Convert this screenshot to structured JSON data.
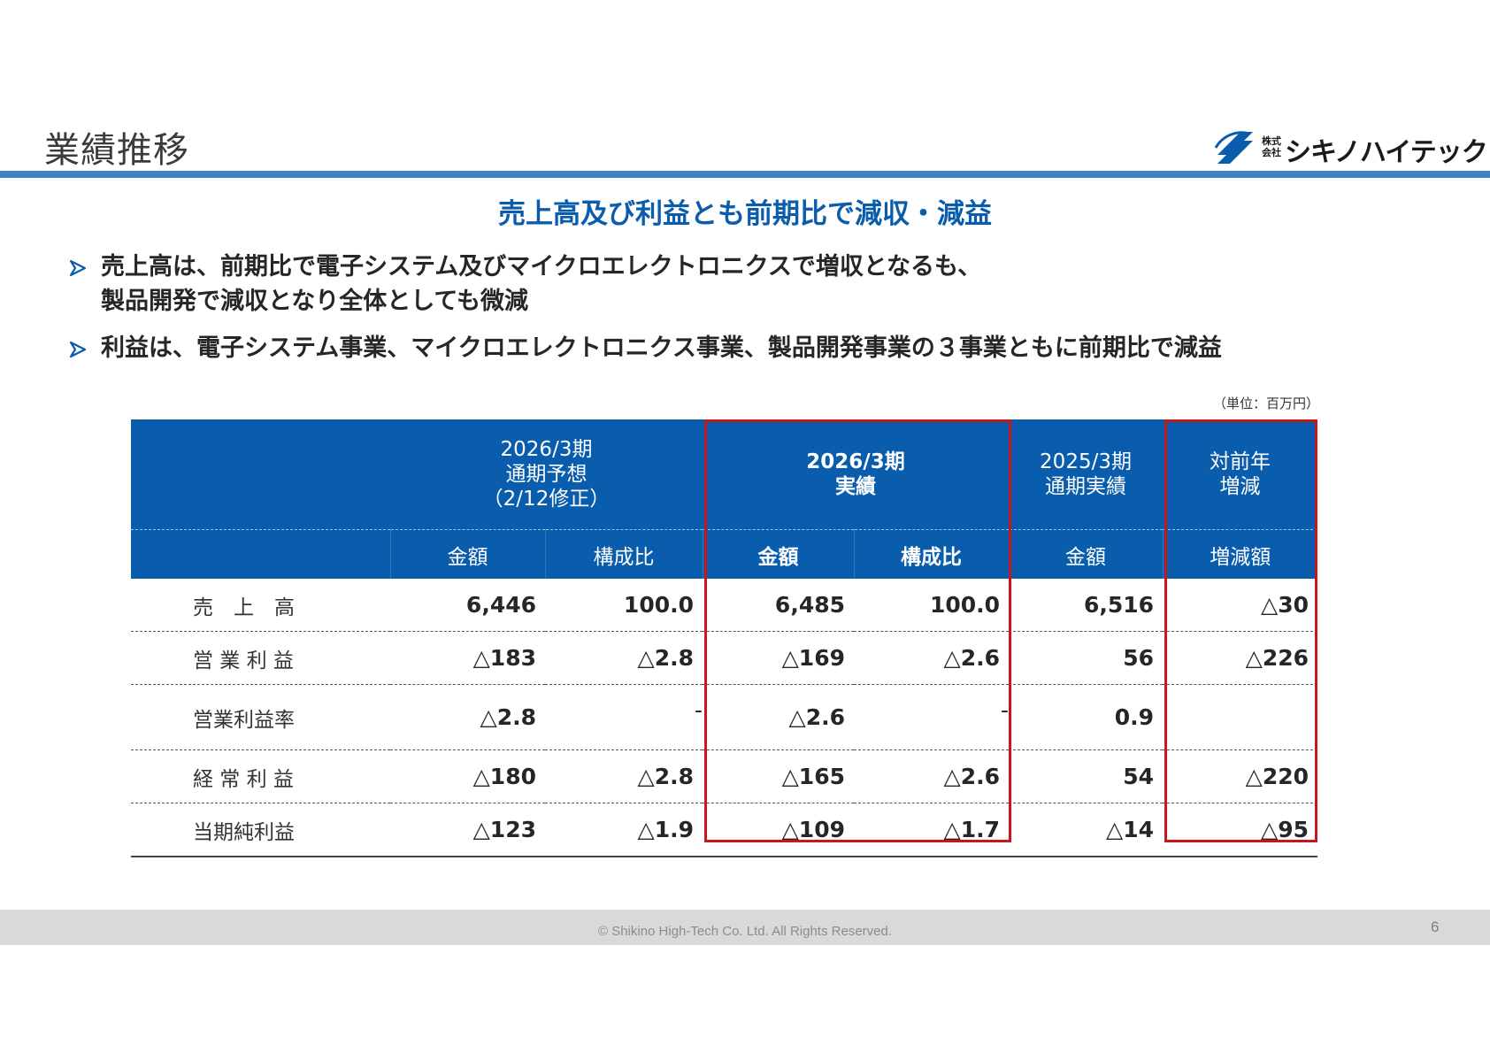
{
  "header": {
    "title": "業績推移",
    "logo": {
      "small_text": "株式会社",
      "name": "シキノハイテック"
    }
  },
  "headline": "売上高及び利益とも前期比で減収・減益",
  "bullets": [
    {
      "line1": "売上高は、前期比で電子システム及びマイクロエレクトロニクスで増収となるも、",
      "line2": "製品開発で減収となり全体としても微減"
    },
    {
      "line1": "利益は、電子システム事業、マイクロエレクトロニクス事業、製品開発事業の３事業ともに前期比で減益"
    }
  ],
  "unit_note": "（単位：百万円）",
  "table": {
    "group_headers": {
      "forecast": {
        "line1": "2026/3期",
        "line2": "通期予想",
        "line3": "（2/12修正）"
      },
      "actual": {
        "line1": "2026/3期",
        "line2": "実績"
      },
      "prior": {
        "line1": "2025/3期",
        "line2": "通期実績"
      },
      "change": {
        "line1": "対前年",
        "line2": "増減"
      }
    },
    "sub_headers": [
      "金額",
      "構成比",
      "金額",
      "構成比",
      "金額",
      "増減額"
    ],
    "rows": [
      {
        "label": "売　上　高",
        "values": [
          "6,446",
          "100.0",
          "6,485",
          "100.0",
          "6,516",
          "△30"
        ]
      },
      {
        "label": "営 業 利 益",
        "values": [
          "△183",
          "△2.8",
          "△169",
          "△2.6",
          "56",
          "△226"
        ]
      },
      {
        "label": "営業利益率",
        "values": [
          "△2.8",
          "-",
          "△2.6",
          "-",
          "0.9",
          ""
        ]
      },
      {
        "label": "経 常 利 益",
        "values": [
          "△180",
          "△2.8",
          "△165",
          "△2.6",
          "54",
          "△220"
        ]
      },
      {
        "label": "当期純利益",
        "values": [
          "△123",
          "△1.9",
          "△109",
          "△1.7",
          "△14",
          "△95"
        ]
      }
    ]
  },
  "footer": {
    "copyright": "© Shikino High-Tech Co. Ltd. All Rights Reserved.",
    "page_number": "6"
  },
  "colors": {
    "brand_blue": "#0a5cad",
    "rule_blue": "#3f82c4",
    "highlight_red": "#c8161d"
  }
}
